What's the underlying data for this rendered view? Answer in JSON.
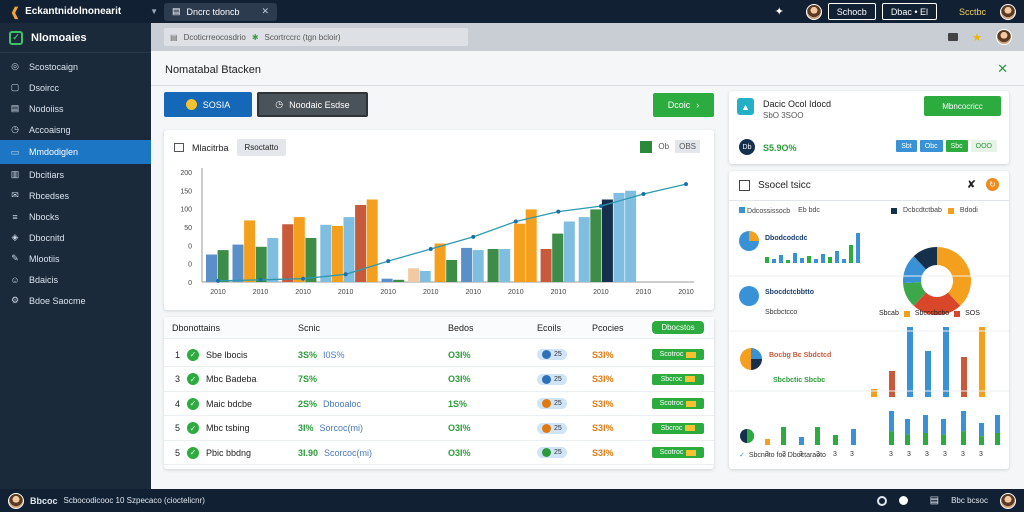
{
  "topbar": {
    "brand": "Eckantnidolnonearit",
    "tab_label": "Dncrc tdoncb",
    "user_name": "Schocb",
    "button_label": "Dbac • El",
    "right_text": "Scctbc"
  },
  "addressbar": {
    "url": "Dcoticrreocosdrio",
    "path": "Scortrccrc (tgn bcloir)"
  },
  "sidebar": {
    "title": "Nlomoaies",
    "items": [
      {
        "label": "Scostocaign",
        "icon": "target-icon"
      },
      {
        "label": "Dsoircc",
        "icon": "folder-icon"
      },
      {
        "label": "Nodoiiss",
        "icon": "inbox-icon"
      },
      {
        "label": "Accoaisng",
        "icon": "clock-icon"
      },
      {
        "label": "Mmdodiglen",
        "icon": "monitor-icon",
        "active": true
      },
      {
        "label": "Dbcitiars",
        "icon": "doc-icon"
      },
      {
        "label": "Rbcedses",
        "icon": "mail-icon"
      },
      {
        "label": "Nbocks",
        "icon": "list-icon"
      },
      {
        "label": "Dbocnitd",
        "icon": "shield-icon"
      },
      {
        "label": "Mlootiis",
        "icon": "pen-icon"
      },
      {
        "label": "Bdaicis",
        "icon": "people-icon"
      },
      {
        "label": "Bdoe Saocme",
        "icon": "gear-icon"
      }
    ]
  },
  "main": {
    "title": "Nomatabal Btacken",
    "btn_blue": "SOSIA",
    "btn_dark": "Noodaic Esdse",
    "btn_green": "Dcoic"
  },
  "chart_card": {
    "title": "Mlacitrba",
    "chip": "Rsoctatto",
    "legend_a": "Ob",
    "legend_b": "OBS"
  },
  "chart_data": {
    "type": "bar",
    "categories": [
      "2010",
      "2010",
      "2010",
      "2010",
      "2010",
      "2010",
      "2010",
      "2010",
      "2010",
      "2010",
      "2010",
      "2010"
    ],
    "xlabel": "",
    "ylabel": "",
    "y_tick_labels": [
      "0",
      "0",
      "0",
      "50",
      "100",
      "150",
      "200"
    ],
    "ylim": [
      0,
      200
    ],
    "series": [
      {
        "color": "#5b8fc8",
        "values": [
          50,
          68,
          60,
          105,
          0,
          0,
          0,
          0,
          0,
          0,
          0,
          0
        ]
      },
      {
        "color": "#3d8c47",
        "values": [
          58,
          64,
          80,
          150,
          0,
          0,
          70,
          60,
          0,
          0,
          0,
          0
        ]
      },
      {
        "color": "#f4a01e",
        "values": [
          0,
          0,
          112,
          0,
          0,
          0,
          0,
          60,
          150,
          0,
          0,
          0
        ]
      },
      {
        "color": "#7fbde1",
        "values": [
          0,
          0,
          0,
          0,
          0,
          0,
          0,
          0,
          0,
          0,
          0,
          0
        ]
      }
    ],
    "bars": [
      {
        "v": 50,
        "c": "#5b8fc8"
      },
      {
        "v": 58,
        "c": "#3d8c47"
      },
      {
        "v": 68,
        "c": "#5b8fc8"
      },
      {
        "v": 112,
        "c": "#f4a01e"
      },
      {
        "v": 64,
        "c": "#3d8c47"
      },
      {
        "v": 80,
        "c": "#7fbde1"
      },
      {
        "v": 105,
        "c": "#c75a3a"
      },
      {
        "v": 118,
        "c": "#f4a01e"
      },
      {
        "v": 80,
        "c": "#3d8c47"
      },
      {
        "v": 104,
        "c": "#7fbde1"
      },
      {
        "v": 102,
        "c": "#f4a01e"
      },
      {
        "v": 118,
        "c": "#7fbde1"
      },
      {
        "v": 140,
        "c": "#c75a3a"
      },
      {
        "v": 150,
        "c": "#f4a01e"
      },
      {
        "v": 6,
        "c": "#5b8fc8"
      },
      {
        "v": 4,
        "c": "#3d8c47"
      },
      {
        "v": 25,
        "c": "#f2c9a2"
      },
      {
        "v": 20,
        "c": "#7fbde1"
      },
      {
        "v": 70,
        "c": "#f4a01e"
      },
      {
        "v": 40,
        "c": "#3d8c47"
      },
      {
        "v": 62,
        "c": "#5b8fc8"
      },
      {
        "v": 58,
        "c": "#7fbde1"
      },
      {
        "v": 60,
        "c": "#3d8c47"
      },
      {
        "v": 60,
        "c": "#7fbde1"
      },
      {
        "v": 106,
        "c": "#f4a01e"
      },
      {
        "v": 132,
        "c": "#f4a01e"
      },
      {
        "v": 60,
        "c": "#c75a3a"
      },
      {
        "v": 88,
        "c": "#3d8c47"
      },
      {
        "v": 110,
        "c": "#7fbde1"
      },
      {
        "v": 118,
        "c": "#7fbde1"
      },
      {
        "v": 132,
        "c": "#3d8c47"
      },
      {
        "v": 150,
        "c": "#15304d"
      },
      {
        "v": 162,
        "c": "#7fbde1"
      },
      {
        "v": 166,
        "c": "#7fbde1"
      }
    ],
    "line": [
      2,
      4,
      6,
      14,
      38,
      60,
      82,
      110,
      128,
      138,
      160,
      178
    ]
  },
  "table": {
    "headers": [
      "Dbonottains",
      "Scnic",
      "Bedos",
      "Ecoils",
      "Pcocies",
      "Dbocstos"
    ],
    "rows": [
      {
        "n": "1",
        "name": "Sbe lbocis",
        "a1": "3S%",
        "a2": "I0S%",
        "b": "O3I%",
        "c": "25",
        "c_color": "#2f6fb7",
        "d": "S3I%",
        "e": "Scotroc"
      },
      {
        "n": "3",
        "name": "Mbc Badeba",
        "a1": "7S%",
        "a2": "",
        "b": "O3I%",
        "c": "25",
        "c_color": "#2f6fb7",
        "d": "S3I%",
        "e": "Sbcroc"
      },
      {
        "n": "4",
        "name": "Maic bdcbe",
        "a1": "2S%",
        "a2": "Dbooaloc",
        "b": "1S%",
        "c": "25",
        "c_color": "#e07a10",
        "d": "S3I%",
        "e": "Scotroc"
      },
      {
        "n": "5",
        "name": "Mbc tsbing",
        "a1": "3I%",
        "a2": "Sorcoc(mi)",
        "b": "O3I%",
        "c": "25",
        "c_color": "#e07a10",
        "d": "S3I%",
        "e": "Sbcroc"
      },
      {
        "n": "5",
        "name": "Pbic bbdng",
        "a1": "3I.90",
        "a2": "Scorcoc(mi)",
        "b": "O3I%",
        "c": "25",
        "c_color": "#2b9a3a",
        "d": "S3I%",
        "e": "Scotroc"
      }
    ]
  },
  "right_top": {
    "title": "Dacic Ocol Idocd",
    "subtitle": "SbO 3SOO",
    "button": "Mbncocricc",
    "value": "S5.9O%",
    "dot_label": "Db",
    "tags": [
      {
        "label": "Sbt",
        "bg": "#3a92d6",
        "fg": "#fff"
      },
      {
        "label": "Obc",
        "bg": "#3a92d6",
        "fg": "#fff"
      },
      {
        "label": "Sbc",
        "bg": "#2cab3f",
        "fg": "#fff"
      },
      {
        "label": "OOO",
        "bg": "#e7f3e7",
        "fg": "#2b9a3a"
      }
    ]
  },
  "right_main": {
    "title": "Ssocel tsicc",
    "legend1": [
      "Ddcossissocb",
      "Eb bdc"
    ],
    "legend2": [
      "Dcbcdtctbab",
      "Bdodi"
    ],
    "row1_title": "Dbodcodcdc",
    "row2_title": "Sbocdctcbbtto",
    "row2_sub": "Sbcbctcco",
    "row3_title": "Bocbg Bc Sbdctcd",
    "row3_sub": "Sbcbctic Sbcbc",
    "legend3": [
      "Sbcab",
      "Sbcccbcbo",
      "SOS"
    ],
    "footer": "Sbcnnto foc Dboctaraoto",
    "axis_labels": [
      "3",
      "3",
      "3",
      "3",
      "3",
      "3",
      "3",
      "3",
      "3",
      "3",
      "3",
      "3"
    ],
    "pie": [
      {
        "v": 38,
        "c": "#f4a01e"
      },
      {
        "v": 24,
        "c": "#d9472b"
      },
      {
        "v": 12,
        "c": "#3da84a"
      },
      {
        "v": 14,
        "c": "#3a92d6"
      },
      {
        "v": 12,
        "c": "#15304d"
      }
    ]
  },
  "footer": {
    "brand": "Bbcoc",
    "status": "Scbocodicooc 10 Szpecaco (cioctelicnr)",
    "right_label": "Bbc bcsoc"
  }
}
